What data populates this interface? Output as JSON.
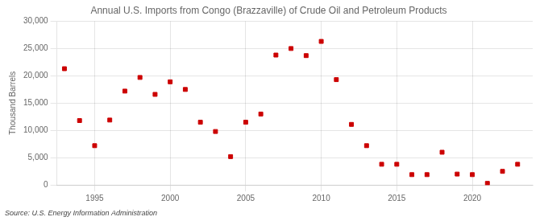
{
  "chart_data": {
    "type": "scatter",
    "title": "Annual U.S. Imports from Congo (Brazzaville) of Crude Oil and Petroleum Products",
    "y_label": "Thousand Barrels",
    "annotations": [
      "Source: U.S. Energy Information Administration"
    ],
    "x": [
      1993,
      1994,
      1995,
      1996,
      1997,
      1998,
      1999,
      2000,
      2001,
      2002,
      2003,
      2004,
      2005,
      2006,
      2007,
      2008,
      2009,
      2010,
      2011,
      2012,
      2013,
      2014,
      2015,
      2016,
      2017,
      2018,
      2019,
      2020,
      2021,
      2022,
      2023
    ],
    "values": [
      21300,
      11800,
      7200,
      11900,
      17200,
      19700,
      16600,
      18900,
      17500,
      11500,
      9800,
      5200,
      11500,
      13000,
      23800,
      25000,
      23700,
      26300,
      19300,
      11100,
      7200,
      3800,
      3800,
      1900,
      1900,
      6000,
      2000,
      1900,
      300,
      2500,
      3800
    ],
    "color": "#cc0000",
    "marker": "square",
    "xlim": [
      1992.5,
      2024
    ],
    "xticks": [
      1995,
      2000,
      2005,
      2010,
      2015,
      2020
    ],
    "ylim": [
      0,
      30000
    ],
    "yticks": [
      0,
      {
        "value": 5000,
        "label": "5,000"
      },
      {
        "value": 10000,
        "label": "10,000"
      },
      {
        "value": 15000,
        "label": "15,000"
      },
      {
        "value": 20000,
        "label": "20,000"
      },
      {
        "value": 25000,
        "label": "25,000"
      },
      {
        "value": 30000,
        "label": "30,000"
      }
    ],
    "grid": true
  }
}
